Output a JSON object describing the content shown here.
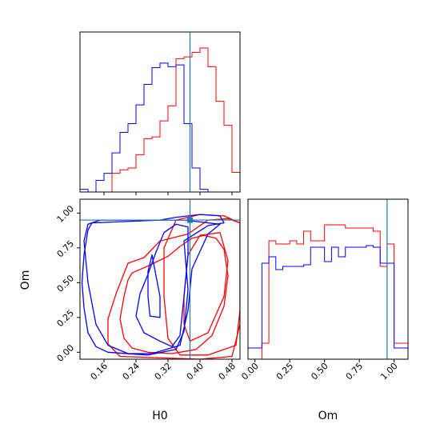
{
  "chart_data": {
    "type": "corner",
    "parameters": [
      "H0",
      "Om"
    ],
    "truth": {
      "H0": 0.375,
      "Om": 0.95
    },
    "truth_color": "#1f77b4",
    "series": [
      {
        "color": "#ff0000"
      },
      {
        "color": "#0000ff"
      }
    ],
    "panels": [
      {
        "id": "hist-H0",
        "type": "histogram",
        "xlim": [
          0.1,
          0.5
        ],
        "xticks": [
          0.16,
          0.24,
          0.32,
          0.4,
          0.48
        ],
        "xticklabels": [
          "0.16",
          "0.24",
          "0.32",
          "0.40",
          "0.48"
        ],
        "bin_edges": [
          0.1,
          0.12,
          0.14,
          0.16,
          0.18,
          0.2,
          0.22,
          0.24,
          0.26,
          0.28,
          0.3,
          0.32,
          0.34,
          0.36,
          0.38,
          0.4,
          0.42,
          0.44,
          0.46,
          0.48,
          0.5
        ],
        "ylim": [
          0,
          180
        ],
        "counts": [
          [
            0,
            0,
            0,
            0,
            21,
            25,
            27,
            42,
            60,
            62,
            80,
            97,
            150,
            152,
            157,
            162,
            141,
            102,
            75,
            22
          ],
          [
            3,
            0,
            13,
            21,
            44,
            67,
            77,
            98,
            121,
            140,
            145,
            141,
            143,
            77,
            27,
            3,
            0,
            0,
            0,
            0
          ]
        ]
      },
      {
        "id": "hist-Om",
        "type": "histogram",
        "xlim": [
          -0.05,
          1.1
        ],
        "xticks": [
          0.0,
          0.25,
          0.5,
          0.75,
          1.0
        ],
        "xticklabels": [
          "0.00",
          "0.25",
          "0.50",
          "0.75",
          "1.00"
        ],
        "xlabel": "Om",
        "bin_edges": [
          -0.05,
          0.0,
          0.05,
          0.1,
          0.15,
          0.2,
          0.25,
          0.3,
          0.35,
          0.4,
          0.45,
          0.5,
          0.55,
          0.6,
          0.65,
          0.7,
          0.75,
          0.8,
          0.85,
          0.9,
          0.95,
          1.0,
          1.05,
          1.1
        ],
        "ylim": [
          0,
          100
        ],
        "counts": [
          [
            0,
            0,
            10,
            74,
            72,
            72,
            74,
            72,
            80,
            74,
            74,
            84,
            84,
            84,
            82,
            82,
            82,
            82,
            80,
            58,
            72,
            10,
            10
          ],
          [
            7,
            7,
            60,
            64,
            56,
            58,
            58,
            58,
            59,
            70,
            70,
            61,
            70,
            64,
            70,
            70,
            70,
            71,
            70,
            60,
            60,
            7,
            7
          ]
        ]
      },
      {
        "id": "contour-H0-Om",
        "type": "contour",
        "xlim": [
          0.1,
          0.5
        ],
        "ylim": [
          -0.05,
          1.1
        ],
        "xticks": [
          0.16,
          0.24,
          0.32,
          0.4,
          0.48
        ],
        "xticklabels": [
          "0.16",
          "0.24",
          "0.32",
          "0.40",
          "0.48"
        ],
        "yticks": [
          0.0,
          0.25,
          0.5,
          0.75,
          1.0
        ],
        "yticklabels": [
          "0.00",
          "0.25",
          "0.50",
          "0.75",
          "1.00"
        ],
        "xlabel": "H0",
        "ylabel": "Om",
        "contours": [
          {
            "series": 0,
            "points": [
              [
                0.4,
                0.99
              ],
              [
                0.46,
                0.98
              ],
              [
                0.5,
                0.93
              ],
              [
                0.5,
                0.3
              ],
              [
                0.49,
                0.05
              ],
              [
                0.42,
                -0.02
              ],
              [
                0.35,
                -0.02
              ],
              [
                0.32,
                0.1
              ],
              [
                0.31,
                0.4
              ],
              [
                0.31,
                0.75
              ],
              [
                0.34,
                0.95
              ]
            ]
          },
          {
            "series": 0,
            "points": [
              [
                0.26,
                0.68
              ],
              [
                0.3,
                0.8
              ],
              [
                0.37,
                0.85
              ],
              [
                0.42,
                0.95
              ],
              [
                0.47,
                0.96
              ],
              [
                0.5,
                0.93
              ],
              [
                0.5,
                0.2
              ],
              [
                0.48,
                -0.03
              ],
              [
                0.4,
                -0.05
              ],
              [
                0.2,
                -0.03
              ],
              [
                0.17,
                0.06
              ],
              [
                0.17,
                0.24
              ],
              [
                0.19,
                0.42
              ],
              [
                0.22,
                0.64
              ]
            ]
          },
          {
            "series": 0,
            "points": [
              [
                0.375,
                0.08
              ],
              [
                0.42,
                0.14
              ],
              [
                0.46,
                0.4
              ],
              [
                0.47,
                0.66
              ],
              [
                0.45,
                0.86
              ],
              [
                0.4,
                0.84
              ],
              [
                0.37,
                0.7
              ],
              [
                0.36,
                0.4
              ],
              [
                0.36,
                0.2
              ]
            ]
          },
          {
            "series": 0,
            "points": [
              [
                0.23,
                0.57
              ],
              [
                0.27,
                0.62
              ],
              [
                0.32,
                0.69
              ],
              [
                0.35,
                0.76
              ],
              [
                0.38,
                0.82
              ],
              [
                0.41,
                0.84
              ],
              [
                0.44,
                0.82
              ],
              [
                0.46,
                0.74
              ],
              [
                0.47,
                0.55
              ],
              [
                0.46,
                0.33
              ],
              [
                0.43,
                0.12
              ],
              [
                0.39,
                0.02
              ],
              [
                0.33,
                -0.01
              ],
              [
                0.27,
                0.0
              ],
              [
                0.23,
                0.03
              ],
              [
                0.21,
                0.1
              ],
              [
                0.2,
                0.24
              ],
              [
                0.21,
                0.4
              ],
              [
                0.22,
                0.52
              ]
            ]
          },
          {
            "series": 1,
            "points": [
              [
                0.15,
                0.95
              ],
              [
                0.36,
                0.95
              ],
              [
                0.45,
                0.92
              ],
              [
                0.42,
                0.85
              ],
              [
                0.38,
                0.6
              ],
              [
                0.37,
                0.3
              ],
              [
                0.35,
                0.05
              ],
              [
                0.28,
                -0.01
              ],
              [
                0.22,
                -0.01
              ],
              [
                0.17,
                0.05
              ],
              [
                0.14,
                0.2
              ],
              [
                0.12,
                0.5
              ],
              [
                0.11,
                0.8
              ],
              [
                0.12,
                0.92
              ]
            ]
          },
          {
            "series": 1,
            "points": [
              [
                0.13,
                0.93
              ],
              [
                0.3,
                0.95
              ],
              [
                0.34,
                0.97
              ],
              [
                0.4,
                0.99
              ],
              [
                0.45,
                0.98
              ],
              [
                0.46,
                0.93
              ],
              [
                0.42,
                0.91
              ],
              [
                0.36,
                0.8
              ],
              [
                0.37,
                0.45
              ],
              [
                0.36,
                0.15
              ],
              [
                0.34,
                0.02
              ],
              [
                0.27,
                -0.02
              ],
              [
                0.17,
                0.0
              ],
              [
                0.14,
                0.04
              ],
              [
                0.12,
                0.14
              ],
              [
                0.11,
                0.32
              ],
              [
                0.105,
                0.5
              ],
              [
                0.11,
                0.7
              ],
              [
                0.12,
                0.88
              ]
            ]
          },
          {
            "series": 1,
            "points": [
              [
                0.31,
                0.86
              ],
              [
                0.34,
                0.92
              ],
              [
                0.37,
                0.9
              ],
              [
                0.37,
                0.7
              ],
              [
                0.36,
                0.4
              ],
              [
                0.35,
                0.12
              ],
              [
                0.33,
                0.04
              ],
              [
                0.3,
                0.08
              ],
              [
                0.26,
                0.14
              ],
              [
                0.24,
                0.26
              ],
              [
                0.25,
                0.42
              ],
              [
                0.27,
                0.56
              ],
              [
                0.29,
                0.72
              ]
            ]
          },
          {
            "series": 1,
            "points": [
              [
                0.275,
                0.26
              ],
              [
                0.3,
                0.25
              ],
              [
                0.3,
                0.4
              ],
              [
                0.29,
                0.55
              ],
              [
                0.28,
                0.7
              ],
              [
                0.27,
                0.58
              ],
              [
                0.27,
                0.4
              ]
            ]
          }
        ]
      }
    ]
  }
}
